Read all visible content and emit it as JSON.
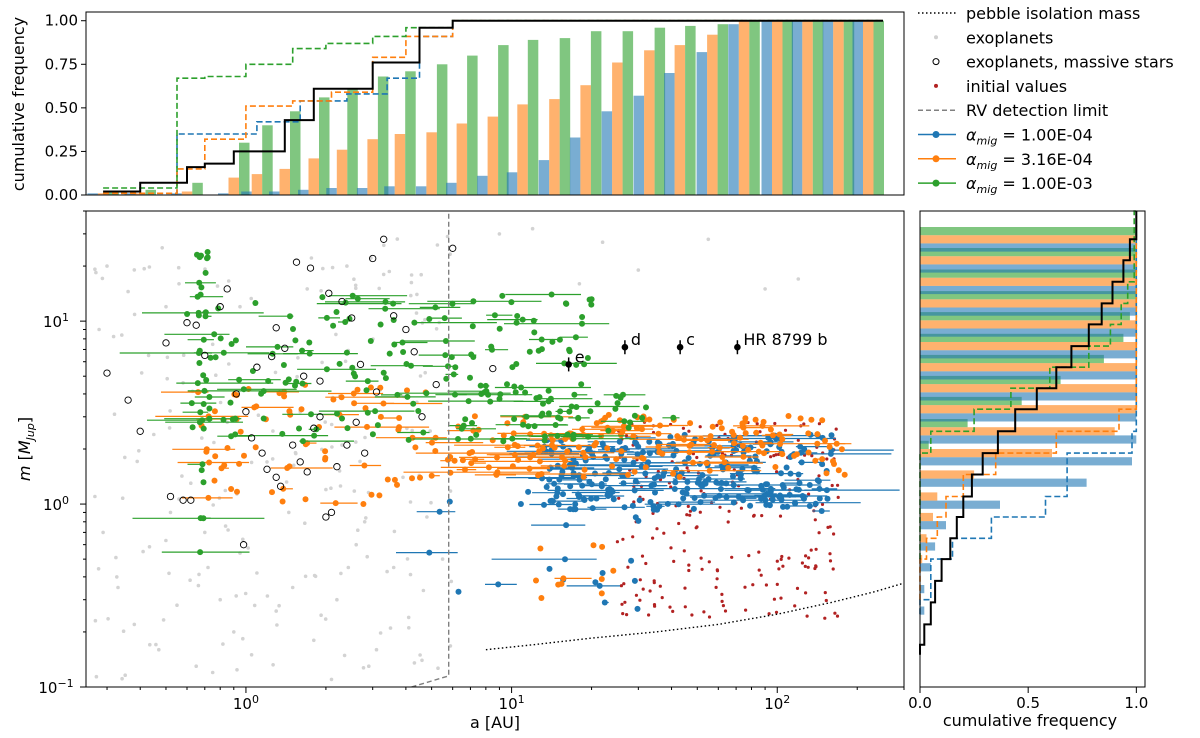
{
  "chart_data": [
    {
      "panel": "top-histogram",
      "type": "bar",
      "ylabel": "cumulative frequency",
      "yticks": [
        "0.00",
        "0.25",
        "0.50",
        "0.75",
        "1.00"
      ],
      "ylim": [
        0,
        1.05
      ],
      "xscale": "log",
      "xlim": [
        0.25,
        300
      ],
      "bins_au": [
        0.29,
        0.4,
        0.6,
        0.9,
        1.1,
        1.4,
        1.8,
        2.3,
        3.0,
        3.8,
        5,
        6.5,
        8.5,
        11,
        14.5,
        19,
        25,
        33,
        43,
        57,
        75,
        100,
        130,
        170,
        220
      ],
      "series": [
        {
          "name": "α_mig = 1.00E-04",
          "color": "#1f77b4",
          "values": [
            0.01,
            0.01,
            0.01,
            0.01,
            0.02,
            0.02,
            0.03,
            0.04,
            0.04,
            0.05,
            0.05,
            0.07,
            0.11,
            0.13,
            0.2,
            0.33,
            0.48,
            0.57,
            0.7,
            0.82,
            0.98,
            1.0,
            1.0,
            1.0,
            1.0
          ]
        },
        {
          "name": "α_mig = 3.16E-04",
          "color": "#ff7f0e",
          "values": [
            0.01,
            0.01,
            0.02,
            0.1,
            0.12,
            0.15,
            0.21,
            0.26,
            0.32,
            0.35,
            0.36,
            0.41,
            0.45,
            0.52,
            0.55,
            0.63,
            0.76,
            0.83,
            0.86,
            0.92,
            1.0,
            1.0,
            1.0,
            1.0,
            1.0
          ]
        },
        {
          "name": "α_mig = 1.00E-03",
          "color": "#2ca02c",
          "values": [
            0.02,
            0.03,
            0.07,
            0.3,
            0.4,
            0.48,
            0.56,
            0.61,
            0.68,
            0.71,
            0.75,
            0.8,
            0.86,
            0.89,
            0.9,
            0.94,
            0.94,
            0.96,
            0.97,
            0.98,
            1.0,
            1.0,
            1.0,
            1.0,
            1.0
          ]
        }
      ],
      "step_exoplanets": {
        "x": [
          0.29,
          0.4,
          0.6,
          0.7,
          0.9,
          1.4,
          1.8,
          3.0,
          4.5,
          6.0,
          250
        ],
        "y": [
          0.02,
          0.07,
          0.16,
          0.18,
          0.25,
          0.43,
          0.61,
          0.76,
          0.96,
          1.0,
          1.0
        ]
      },
      "step_dashed": [
        {
          "color": "#1f77b4",
          "x": [
            0.29,
            0.4,
            0.55,
            0.7,
            1.1,
            1.6,
            2.4,
            3.4,
            4.5,
            6.0,
            250
          ],
          "y": [
            0.01,
            0.01,
            0.35,
            0.35,
            0.42,
            0.54,
            0.58,
            0.67,
            0.91,
            1.0,
            1.0
          ]
        },
        {
          "color": "#ff7f0e",
          "x": [
            0.29,
            0.4,
            0.55,
            0.7,
            1.0,
            1.5,
            2.1,
            3.0,
            4.0,
            6.0,
            250
          ],
          "y": [
            0.01,
            0.01,
            0.15,
            0.32,
            0.51,
            0.54,
            0.59,
            0.79,
            0.91,
            1.0,
            1.0
          ]
        },
        {
          "color": "#2ca02c",
          "x": [
            0.29,
            0.4,
            0.55,
            0.7,
            1.0,
            1.5,
            2.0,
            3.0,
            4.0,
            6.0,
            250
          ],
          "y": [
            0.04,
            0.04,
            0.67,
            0.68,
            0.75,
            0.84,
            0.87,
            0.91,
            0.96,
            1.0,
            1.0
          ]
        }
      ]
    },
    {
      "panel": "main-scatter",
      "type": "scatter",
      "xlabel": "a [AU]",
      "ylabel": "m [M_Jup]",
      "xscale": "log",
      "yscale": "log",
      "xlim": [
        0.25,
        300
      ],
      "ylim": [
        0.1,
        40
      ],
      "xticks": [
        {
          "value": 1,
          "label": "10",
          "sup": "0"
        },
        {
          "value": 10,
          "label": "10",
          "sup": "1"
        },
        {
          "value": 100,
          "label": "10",
          "sup": "2"
        }
      ],
      "yticks": [
        {
          "value": 0.1,
          "label": "10",
          "sup": "−1"
        },
        {
          "value": 1,
          "label": "10",
          "sup": "0"
        },
        {
          "value": 10,
          "label": "10",
          "sup": "1"
        }
      ],
      "pebble_isolation_mass": {
        "x": [
          8,
          12,
          20,
          35,
          60,
          100,
          160,
          230,
          300
        ],
        "y": [
          0.16,
          0.17,
          0.185,
          0.2,
          0.22,
          0.25,
          0.29,
          0.33,
          0.37
        ]
      },
      "rv_detection_limit": {
        "x": [
          4.2,
          5.8,
          5.8,
          5.8
        ],
        "y": [
          0.1,
          0.115,
          1.5,
          40
        ]
      },
      "hr8799": [
        {
          "label": "e",
          "a": 16.4,
          "m": 5.8
        },
        {
          "label": "d",
          "a": 26.7,
          "m": 7.2
        },
        {
          "label": "c",
          "a": 43.1,
          "m": 7.2
        },
        {
          "label": "HR 8799 b",
          "a": 70.8,
          "m": 7.2
        }
      ],
      "exoplanets": [
        [
          0.32,
          3.1
        ],
        [
          0.35,
          1.8
        ],
        [
          0.41,
          0.55
        ],
        [
          0.45,
          2.4
        ],
        [
          0.52,
          0.9
        ],
        [
          0.58,
          4.6
        ],
        [
          0.62,
          1.3
        ],
        [
          0.33,
          0.35
        ],
        [
          0.38,
          0.22
        ],
        [
          0.47,
          0.16
        ],
        [
          0.55,
          0.28
        ],
        [
          0.65,
          0.13
        ],
        [
          0.72,
          0.45
        ],
        [
          0.8,
          0.3
        ],
        [
          0.9,
          0.2
        ],
        [
          1.1,
          0.42
        ],
        [
          1.3,
          0.26
        ],
        [
          1.5,
          0.35
        ],
        [
          1.8,
          0.18
        ],
        [
          2.2,
          0.3
        ],
        [
          2.6,
          0.6
        ],
        [
          3.1,
          0.16
        ],
        [
          3.6,
          0.45
        ],
        [
          4.1,
          0.24
        ],
        [
          4.8,
          0.85
        ],
        [
          1.2,
          1.7
        ],
        [
          0.95,
          12
        ],
        [
          1.7,
          15
        ],
        [
          2.4,
          20
        ],
        [
          3.3,
          18
        ],
        [
          4.4,
          14
        ],
        [
          0.28,
          9
        ],
        [
          0.3,
          20
        ],
        [
          5.2,
          2.3
        ],
        [
          4.6,
          0.14
        ],
        [
          0.7,
          0.7
        ],
        [
          1.45,
          0.9
        ],
        [
          2.0,
          1.2
        ],
        [
          2.8,
          0.8
        ],
        [
          3.9,
          1.4
        ],
        [
          0.43,
          6.5
        ],
        [
          0.5,
          12
        ],
        [
          12,
          32
        ],
        [
          18,
          16
        ],
        [
          22,
          27
        ],
        [
          30,
          19
        ],
        [
          9,
          30
        ],
        [
          55,
          28
        ],
        [
          90,
          15
        ],
        [
          120,
          17
        ],
        [
          0.36,
          14.5
        ],
        [
          0.56,
          16
        ],
        [
          1.6,
          3.2
        ],
        [
          2.3,
          2.1
        ],
        [
          0.85,
          2.8
        ],
        [
          0.27,
          1.1
        ],
        [
          0.29,
          0.7
        ],
        [
          5.5,
          0.5
        ],
        [
          4.4,
          3.6
        ],
        [
          3.2,
          4.2
        ],
        [
          0.75,
          0.12
        ],
        [
          1.05,
          0.15
        ],
        [
          2.1,
          0.11
        ],
        [
          2.9,
          0.13
        ],
        [
          3.5,
          0.21
        ]
      ],
      "massive_star_exoplanets": [
        [
          0.3,
          5.2
        ],
        [
          0.36,
          3.7
        ],
        [
          0.4,
          2.5
        ],
        [
          0.52,
          1.1
        ],
        [
          0.58,
          1.05
        ],
        [
          0.62,
          1.05
        ],
        [
          0.5,
          7.6
        ],
        [
          0.6,
          9.8
        ],
        [
          0.65,
          9.5
        ],
        [
          0.8,
          12
        ],
        [
          0.92,
          4.0
        ],
        [
          1.0,
          3.2
        ],
        [
          1.05,
          2.3
        ],
        [
          1.15,
          1.9
        ],
        [
          1.2,
          1.55
        ],
        [
          1.3,
          1.4
        ],
        [
          1.35,
          1.25
        ],
        [
          1.5,
          2.1
        ],
        [
          1.6,
          1.7
        ],
        [
          1.7,
          1.5
        ],
        [
          1.8,
          2.6
        ],
        [
          1.9,
          3.0
        ],
        [
          2.0,
          0.85
        ],
        [
          2.1,
          0.9
        ],
        [
          2.2,
          1.6
        ],
        [
          0.98,
          0.6
        ],
        [
          2.4,
          2.1
        ],
        [
          2.6,
          2.8
        ],
        [
          2.8,
          1.9
        ],
        [
          3.0,
          22
        ],
        [
          3.3,
          28
        ],
        [
          3.6,
          10.7
        ],
        [
          4.0,
          9.0
        ],
        [
          4.3,
          6.8
        ],
        [
          1.1,
          5.6
        ],
        [
          1.25,
          6.4
        ],
        [
          1.4,
          7.1
        ],
        [
          1.55,
          21
        ],
        [
          1.75,
          19.5
        ],
        [
          2.05,
          14.2
        ],
        [
          2.3,
          12.8
        ],
        [
          2.5,
          10.4
        ],
        [
          0.85,
          15
        ],
        [
          0.7,
          6.5
        ],
        [
          1.9,
          4.7
        ],
        [
          3.1,
          4.1
        ],
        [
          4.6,
          3.0
        ],
        [
          5.2,
          4.5
        ],
        [
          6.0,
          25
        ],
        [
          8.5,
          5.5
        ],
        [
          1.3,
          9.2
        ],
        [
          1.65,
          5.0
        ],
        [
          2.7,
          5.8
        ]
      ],
      "initial_values": {
        "color": "#b22222",
        "a_range": [
          25,
          170
        ],
        "m_range": [
          0.23,
          2.9
        ],
        "count": 220,
        "seed": 41
      },
      "mass_ranges": [
        {
          "name": "α_mig = 1.00E-04",
          "color": "#1f77b4",
          "a_range": [
            4.8,
            160
          ],
          "m_range": [
            0.24,
            3.0
          ],
          "count": 300,
          "seed": 11
        },
        {
          "name": "α_mig = 3.16E-04",
          "color": "#ff7f0e",
          "a_range": [
            0.63,
            180
          ],
          "m_range": [
            0.3,
            4.8
          ],
          "count": 260,
          "seed": 23
        },
        {
          "name": "α_mig = 1.00E-03",
          "color": "#2ca02c",
          "a_range": [
            0.33,
            60
          ],
          "m_range": [
            0.45,
            24
          ],
          "count": 250,
          "seed": 37
        }
      ]
    },
    {
      "panel": "right-histogram",
      "type": "bar",
      "xlabel": "cumulative frequency",
      "xticks": [
        "0.0",
        "0.5",
        "1.0"
      ],
      "xlim": [
        0,
        1.04
      ],
      "mass_bins_mjup": [
        0.1,
        0.13,
        0.17,
        0.22,
        0.29,
        0.38,
        0.5,
        0.65,
        0.85,
        1.1,
        1.45,
        1.9,
        2.5,
        3.3,
        4.3,
        5.6,
        7.3,
        9.6,
        12.5,
        16.4,
        21.5,
        28
      ],
      "series": [
        {
          "name": "α_mig = 1.00E-04",
          "color": "#1f77b4",
          "values": [
            0.0,
            0.0,
            0.0,
            0.0,
            0.02,
            0.02,
            0.05,
            0.07,
            0.12,
            0.37,
            0.77,
            0.98,
            1.0,
            1.0,
            1.0,
            1.0,
            1.0,
            1.0,
            1.0,
            1.0,
            1.0,
            1.0
          ]
        },
        {
          "name": "α_mig = 3.16E-04",
          "color": "#ff7f0e",
          "values": [
            0.0,
            0.0,
            0.0,
            0.0,
            0.0,
            0.0,
            0.01,
            0.03,
            0.06,
            0.08,
            0.25,
            0.61,
            0.9,
            1.0,
            1.0,
            1.0,
            1.0,
            1.0,
            1.0,
            1.0,
            1.0,
            1.0
          ]
        },
        {
          "name": "α_mig = 1.00E-03",
          "color": "#2ca02c",
          "values": [
            0.0,
            0.0,
            0.0,
            0.0,
            0.0,
            0.0,
            0.0,
            0.0,
            0.0,
            0.0,
            0.0,
            0.04,
            0.22,
            0.47,
            0.65,
            0.85,
            0.94,
            0.97,
            1.0,
            1.0,
            1.0,
            1.0
          ]
        }
      ],
      "step_exoplanets": {
        "m": [
          0.15,
          0.17,
          0.22,
          0.29,
          0.38,
          0.5,
          0.65,
          0.85,
          1.1,
          1.45,
          1.9,
          2.5,
          3.3,
          4.3,
          5.6,
          7.3,
          9.6,
          12.5,
          16.4,
          21.5,
          28,
          40
        ],
        "f": [
          0.0,
          0.02,
          0.05,
          0.07,
          0.1,
          0.14,
          0.17,
          0.2,
          0.24,
          0.29,
          0.36,
          0.44,
          0.54,
          0.63,
          0.7,
          0.78,
          0.84,
          0.89,
          0.94,
          0.97,
          1.0,
          1.0
        ]
      },
      "step_dashed": [
        {
          "color": "#1f77b4",
          "m": [
            0.25,
            0.3,
            0.5,
            0.65,
            0.85,
            1.1,
            1.9,
            2.5,
            3.3,
            40
          ],
          "f": [
            0.0,
            0.05,
            0.15,
            0.33,
            0.58,
            0.68,
            0.98,
            1.0,
            1.0,
            1.0
          ]
        },
        {
          "color": "#ff7f0e",
          "m": [
            0.3,
            0.5,
            0.65,
            0.85,
            1.1,
            1.45,
            1.9,
            2.5,
            3.3,
            40
          ],
          "f": [
            0.0,
            0.03,
            0.08,
            0.12,
            0.2,
            0.35,
            0.63,
            0.92,
            1.0,
            1.0
          ]
        },
        {
          "color": "#2ca02c",
          "m": [
            0.5,
            1.45,
            1.9,
            2.5,
            3.3,
            4.3,
            5.6,
            7.3,
            9.6,
            12.5,
            16.4,
            40
          ],
          "f": [
            0.0,
            0.0,
            0.05,
            0.25,
            0.42,
            0.6,
            0.78,
            0.88,
            0.93,
            0.96,
            0.99,
            1.0
          ]
        }
      ]
    }
  ],
  "legend": {
    "placement": "top-right",
    "entries": [
      {
        "label": "pebble isolation mass",
        "marker": "dotted-line",
        "color": "#000000"
      },
      {
        "label": "exoplanets",
        "marker": "small-dot",
        "color": "#d0d0d0"
      },
      {
        "label": "exoplanets, massive stars",
        "marker": "open-circle",
        "color": "#000000"
      },
      {
        "label": "initial values",
        "marker": "small-dot",
        "color": "#b22222"
      },
      {
        "label": "RV detection limit",
        "marker": "dashed-line",
        "color": "#808080"
      },
      {
        "label": "α_mig = 1.00E-04",
        "marker": "dot-line",
        "color": "#1f77b4",
        "prefix": "α",
        "sub": "mig",
        "value": " = 1.00E-04"
      },
      {
        "label": "α_mig = 3.16E-04",
        "marker": "dot-line",
        "color": "#ff7f0e",
        "prefix": "α",
        "sub": "mig",
        "value": " = 3.16E-04"
      },
      {
        "label": "α_mig = 1.00E-03",
        "marker": "dot-line",
        "color": "#2ca02c",
        "prefix": "α",
        "sub": "mig",
        "value": " = 1.00E-03"
      }
    ]
  }
}
